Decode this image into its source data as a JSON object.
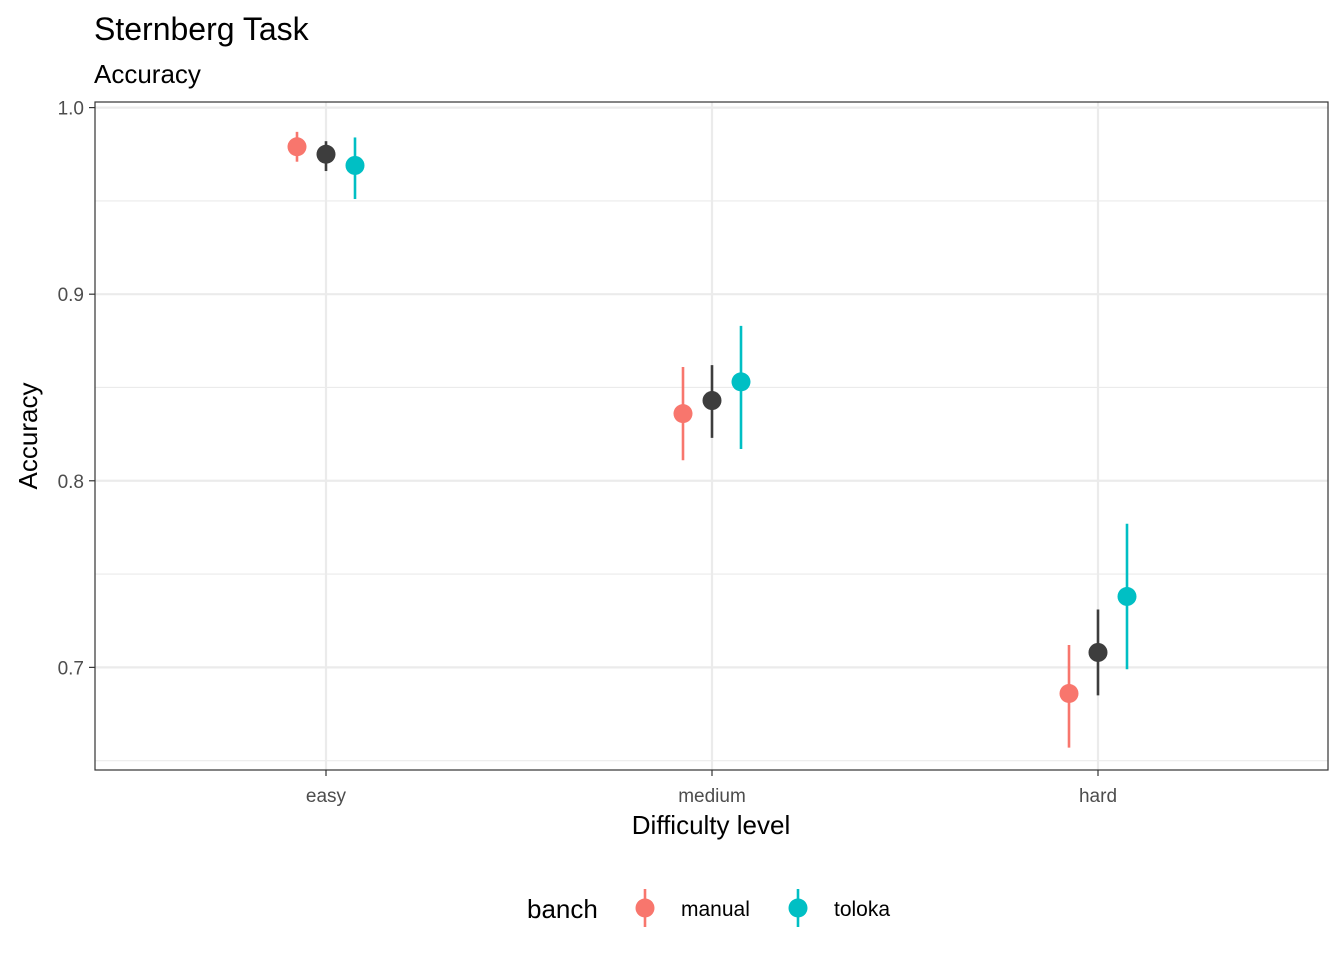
{
  "chart_data": {
    "type": "scatter",
    "subtype": "pointrange",
    "title": "Sternberg Task",
    "subtitle": "Accuracy",
    "xlabel": "Difficulty level",
    "ylabel": "Accuracy",
    "categories": [
      "easy",
      "medium",
      "hard"
    ],
    "ylim": [
      0.645,
      1.003
    ],
    "yticks": [
      0.7,
      0.8,
      0.9,
      1.0
    ],
    "ytick_labels": [
      "0.7",
      "0.8",
      "0.9",
      "1.0"
    ],
    "grid": true,
    "legend": {
      "title": "banch",
      "position": "bottom",
      "entries": [
        "manual",
        "toloka"
      ]
    },
    "series": [
      {
        "name": "manual",
        "color": "#F8766D",
        "offset": -1,
        "y": [
          0.979,
          0.836,
          0.686
        ],
        "ymin": [
          0.971,
          0.811,
          0.657
        ],
        "ymax": [
          0.987,
          0.861,
          0.712
        ]
      },
      {
        "name": "",
        "color": "#3d3d3d",
        "offset": 0,
        "y": [
          0.975,
          0.843,
          0.708
        ],
        "ymin": [
          0.966,
          0.823,
          0.685
        ],
        "ymax": [
          0.982,
          0.862,
          0.731
        ]
      },
      {
        "name": "toloka",
        "color": "#00BFC4",
        "offset": 1,
        "y": [
          0.969,
          0.853,
          0.738
        ],
        "ymin": [
          0.951,
          0.817,
          0.699
        ],
        "ymax": [
          0.984,
          0.883,
          0.777
        ]
      }
    ]
  }
}
